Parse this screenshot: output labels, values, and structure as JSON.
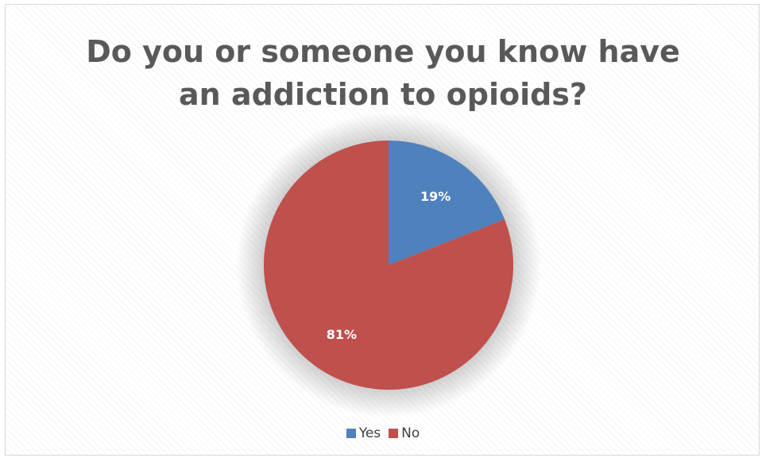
{
  "chart_data": {
    "type": "pie",
    "title_lines": [
      "Do you or someone you know have",
      "an addiction to opioids?"
    ],
    "categories": [
      "Yes",
      "No"
    ],
    "values": [
      19,
      81
    ],
    "data_labels": [
      "19%",
      "81%"
    ],
    "colors": [
      "#4f81bd",
      "#c0504d"
    ],
    "legend_position": "bottom"
  }
}
